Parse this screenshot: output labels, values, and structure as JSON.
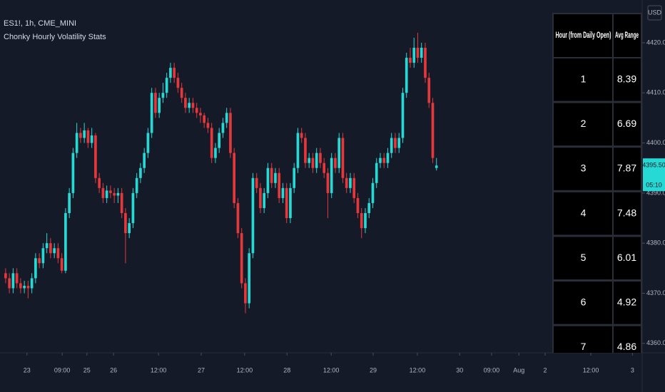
{
  "chart_data": {
    "type": "candlestick",
    "title": "ES1!, 1h, CME_MINI",
    "subtitle": "Chonky Hourly Volatility Stats",
    "currency": "USD",
    "last_label": "4395.50",
    "countdown": "05:10",
    "up_color": "#26d9d4",
    "down_color": "#e5383b",
    "x": [
      0,
      1,
      2,
      3,
      4,
      5,
      6,
      7,
      8,
      9,
      10,
      11,
      12,
      13,
      14,
      15,
      16,
      17,
      18,
      19,
      20,
      21,
      22,
      23,
      24,
      25,
      26,
      27,
      28,
      29,
      30,
      31,
      32,
      33,
      34,
      35,
      36,
      37,
      38,
      39,
      40,
      41,
      42,
      43,
      44,
      45,
      46,
      47,
      48,
      49,
      50,
      51,
      52,
      53,
      54,
      55,
      56,
      57,
      58,
      59,
      60,
      61,
      62,
      63,
      64,
      65,
      66,
      67,
      68,
      69,
      70,
      71,
      72,
      73,
      74,
      75,
      76,
      77,
      78,
      79,
      80,
      81,
      82,
      83,
      84,
      85,
      86,
      87,
      88,
      89,
      90,
      91,
      92,
      93,
      94,
      95,
      96,
      97,
      98,
      99,
      100,
      101,
      102,
      103,
      104,
      105,
      106,
      107,
      108,
      109,
      110,
      111,
      112,
      113,
      114,
      115
    ],
    "open": [
      4374,
      4373,
      4371,
      4374,
      4372,
      4371,
      4371.5,
      4371,
      4373,
      4377,
      4376,
      4379,
      4380,
      4378,
      4379,
      4377,
      4374.5,
      4386,
      4390,
      4398,
      4402,
      4401,
      4402.5,
      4400,
      4401.5,
      4393,
      4391,
      4389,
      4390.5,
      4390,
      4389.5,
      4390,
      4386,
      4382,
      4384,
      4390,
      4393,
      4395,
      4398,
      4402,
      4410,
      4406,
      4409,
      4410,
      4413,
      4415,
      4413,
      4411,
      4409,
      4407,
      4408,
      4407,
      4406,
      4405.5,
      4404,
      4403,
      4397,
      4399,
      4402,
      4404,
      4406,
      4398,
      4388,
      4382,
      4372,
      4368,
      4378,
      4393,
      4391,
      4387,
      4390,
      4395,
      4392,
      4394,
      4389,
      4391,
      4385,
      4391,
      4395,
      4402,
      4401,
      4396,
      4397,
      4395,
      4398,
      4396,
      4394,
      4390,
      4397,
      4395,
      4401,
      4393,
      4391,
      4393,
      4389,
      4386,
      4383,
      4386,
      4388,
      4392,
      4396,
      4397,
      4396,
      4398,
      4401,
      4399,
      4401,
      4410,
      4417,
      4416,
      4419,
      4417,
      4419,
      4413,
      4408,
      4395
    ],
    "high": [
      4375,
      4374,
      4375,
      4375,
      4373,
      4372.5,
      4372.5,
      4374,
      4378,
      4378,
      4380,
      4382,
      4381,
      4380,
      4380,
      4378,
      4387,
      4391,
      4399,
      4404,
      4403,
      4404,
      4403,
      4403,
      4402,
      4394,
      4392,
      4391.5,
      4391.5,
      4391,
      4391,
      4391,
      4387,
      4385,
      4391,
      4394,
      4396,
      4399,
      4403,
      4411,
      4411,
      4410,
      4412,
      4414,
      4416,
      4416,
      4414,
      4412,
      4410,
      4409,
      4409,
      4408,
      4407,
      4406,
      4405,
      4404,
      4400,
      4403,
      4405,
      4407,
      4407,
      4399,
      4389,
      4383,
      4373,
      4379,
      4394,
      4394,
      4392,
      4391,
      4396,
      4396,
      4395,
      4395,
      4392,
      4392,
      4392,
      4396,
      4403,
      4403,
      4402,
      4398,
      4398,
      4399,
      4399,
      4397,
      4395,
      4398,
      4398,
      4402,
      4402,
      4394,
      4394,
      4394,
      4390,
      4387,
      4387,
      4389,
      4393,
      4397,
      4398,
      4398,
      4399,
      4402,
      4402,
      4402,
      4411,
      4418,
      4419,
      4421,
      4422,
      4420,
      4420,
      4414,
      4409,
      4397
    ],
    "low": [
      4372,
      4370,
      4370,
      4371,
      4370,
      4370,
      4369,
      4370,
      4372,
      4375,
      4375,
      4378,
      4377,
      4377,
      4376,
      4374,
      4374,
      4385,
      4389,
      4397,
      4400,
      4400,
      4399,
      4399,
      4392,
      4390,
      4388,
      4388,
      4389,
      4388,
      4388,
      4385,
      4376,
      4381,
      4383,
      4389,
      4392,
      4394,
      4397,
      4401,
      4405,
      4405,
      4408,
      4409,
      4412,
      4412,
      4410,
      4408,
      4406,
      4406,
      4406,
      4405,
      4404,
      4403,
      4402,
      4396,
      4396,
      4398,
      4401,
      4403,
      4397,
      4387,
      4381,
      4371,
      4366,
      4367,
      4377,
      4390,
      4386,
      4386,
      4389,
      4391,
      4391,
      4388,
      4388,
      4384,
      4384,
      4390,
      4394,
      4400,
      4395,
      4395,
      4394,
      4394,
      4395,
      4393,
      4385,
      4389,
      4394,
      4394,
      4392,
      4390,
      4390,
      4388,
      4385,
      4381,
      4382,
      4385,
      4387,
      4391,
      4395,
      4395,
      4395,
      4397,
      4398,
      4398,
      4400,
      4409,
      4415,
      4415,
      4416,
      4416,
      4412,
      4407,
      4396,
      4394.5
    ],
    "close": [
      4373,
      4371,
      4374,
      4372,
      4371,
      4371.5,
      4371,
      4373,
      4377,
      4376,
      4379,
      4380,
      4378,
      4379,
      4377,
      4374.5,
      4386,
      4390,
      4398,
      4402,
      4401,
      4402.5,
      4400,
      4401.5,
      4393,
      4391,
      4389,
      4390.5,
      4390,
      4389.5,
      4390,
      4386,
      4382,
      4384,
      4390,
      4393,
      4395,
      4398,
      4402,
      4410,
      4406,
      4409,
      4410,
      4413,
      4415,
      4413,
      4411,
      4409,
      4407,
      4408,
      4407,
      4406,
      4405.5,
      4404,
      4403,
      4397,
      4399,
      4402,
      4404,
      4406,
      4398,
      4388,
      4382,
      4372,
      4368,
      4378,
      4393,
      4391,
      4387,
      4390,
      4395,
      4392,
      4394,
      4389,
      4391,
      4385,
      4391,
      4395,
      4402,
      4401,
      4396,
      4397,
      4395,
      4398,
      4396,
      4394,
      4390,
      4397,
      4395,
      4401,
      4393,
      4391,
      4393,
      4389,
      4386,
      4383,
      4386,
      4388,
      4392,
      4396,
      4397,
      4396,
      4398,
      4401,
      4399,
      4401,
      4410,
      4417,
      4416,
      4419,
      4417,
      4419,
      4413,
      4408,
      4397,
      4395.5
    ],
    "xlim": [
      -1.5,
      169.9
    ],
    "xticks": [
      {
        "value": 5.7,
        "label": "23"
      },
      {
        "value": 15.1,
        "label": "09:00"
      },
      {
        "value": 21.7,
        "label": "25"
      },
      {
        "value": 28.8,
        "label": "26"
      },
      {
        "value": 40.8,
        "label": "12:00"
      },
      {
        "value": 52.2,
        "label": "27"
      },
      {
        "value": 63.8,
        "label": "12:00"
      },
      {
        "value": 75.1,
        "label": "28"
      },
      {
        "value": 86.9,
        "label": "12:00"
      },
      {
        "value": 98.1,
        "label": "29"
      },
      {
        "value": 109.9,
        "label": "12:00"
      },
      {
        "value": 121.2,
        "label": "30"
      },
      {
        "value": 129.7,
        "label": "09:00"
      },
      {
        "value": 137.0,
        "label": "Aug"
      },
      {
        "value": 144.0,
        "label": "2"
      },
      {
        "value": 156.2,
        "label": "12:00"
      },
      {
        "value": 167.3,
        "label": "3"
      }
    ],
    "ylim": [
      4358.12,
      4428.53
    ],
    "yticks": [
      {
        "value": 4360,
        "label": "4360.00"
      },
      {
        "value": 4370,
        "label": "4370.00"
      },
      {
        "value": 4380,
        "label": "4380.00"
      },
      {
        "value": 4390,
        "label": "4390.00"
      },
      {
        "value": 4400,
        "label": "4400.00"
      },
      {
        "value": 4410,
        "label": "4410.00"
      },
      {
        "value": 4420,
        "label": "4420.00"
      }
    ],
    "grid": false
  },
  "table": {
    "header": [
      "Hour (from Daily Open)",
      "Avg Range"
    ],
    "rows": [
      [
        "1",
        "8.39"
      ],
      [
        "2",
        "6.69"
      ],
      [
        "3",
        "7.87"
      ],
      [
        "4",
        "7.48"
      ],
      [
        "5",
        "6.01"
      ],
      [
        "6",
        "4.92"
      ],
      [
        "7",
        "4.86"
      ]
    ]
  }
}
